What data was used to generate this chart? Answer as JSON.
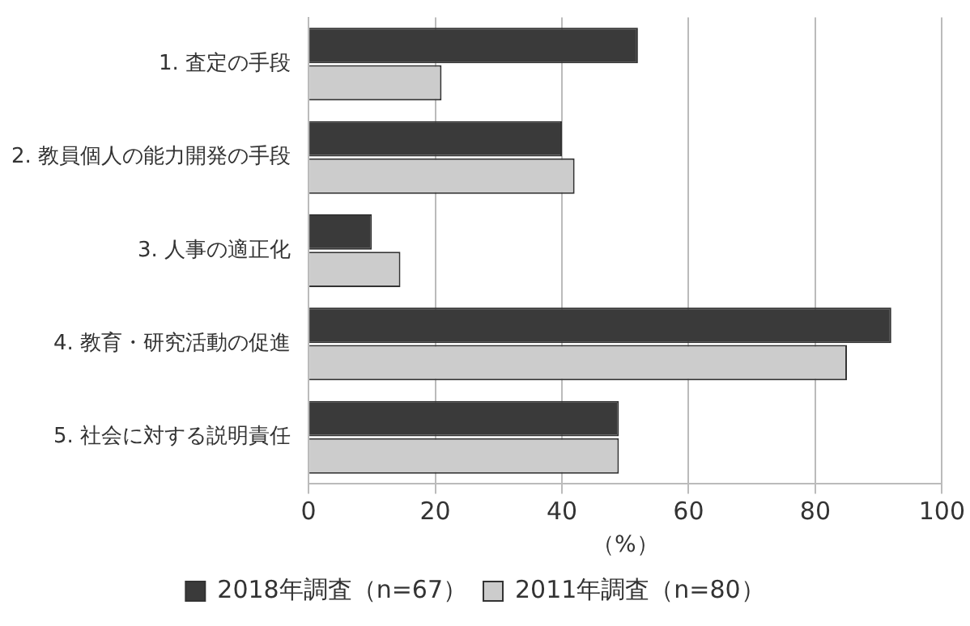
{
  "chart_data": {
    "type": "bar",
    "orientation": "horizontal",
    "xlabel": "（%）",
    "categories": [
      "1. 査定の手段",
      "2. 教員個人の能力開発の手段",
      "3. 人事の適正化",
      "4. 教育・研究活動の促進",
      "5. 社会に対する説明責任"
    ],
    "series": [
      {
        "name": "2018年調査（n=67）",
        "color": "#3a3a3a",
        "values": [
          52,
          40,
          10,
          92,
          49
        ]
      },
      {
        "name": "2011年調査（n=80）",
        "color": "#cccccc",
        "values": [
          21,
          42,
          14.5,
          85,
          49
        ]
      }
    ],
    "xlim": [
      0,
      100
    ],
    "xticks": [
      0,
      20,
      40,
      60,
      80,
      100
    ],
    "grid": "x",
    "legend": "bottom"
  }
}
